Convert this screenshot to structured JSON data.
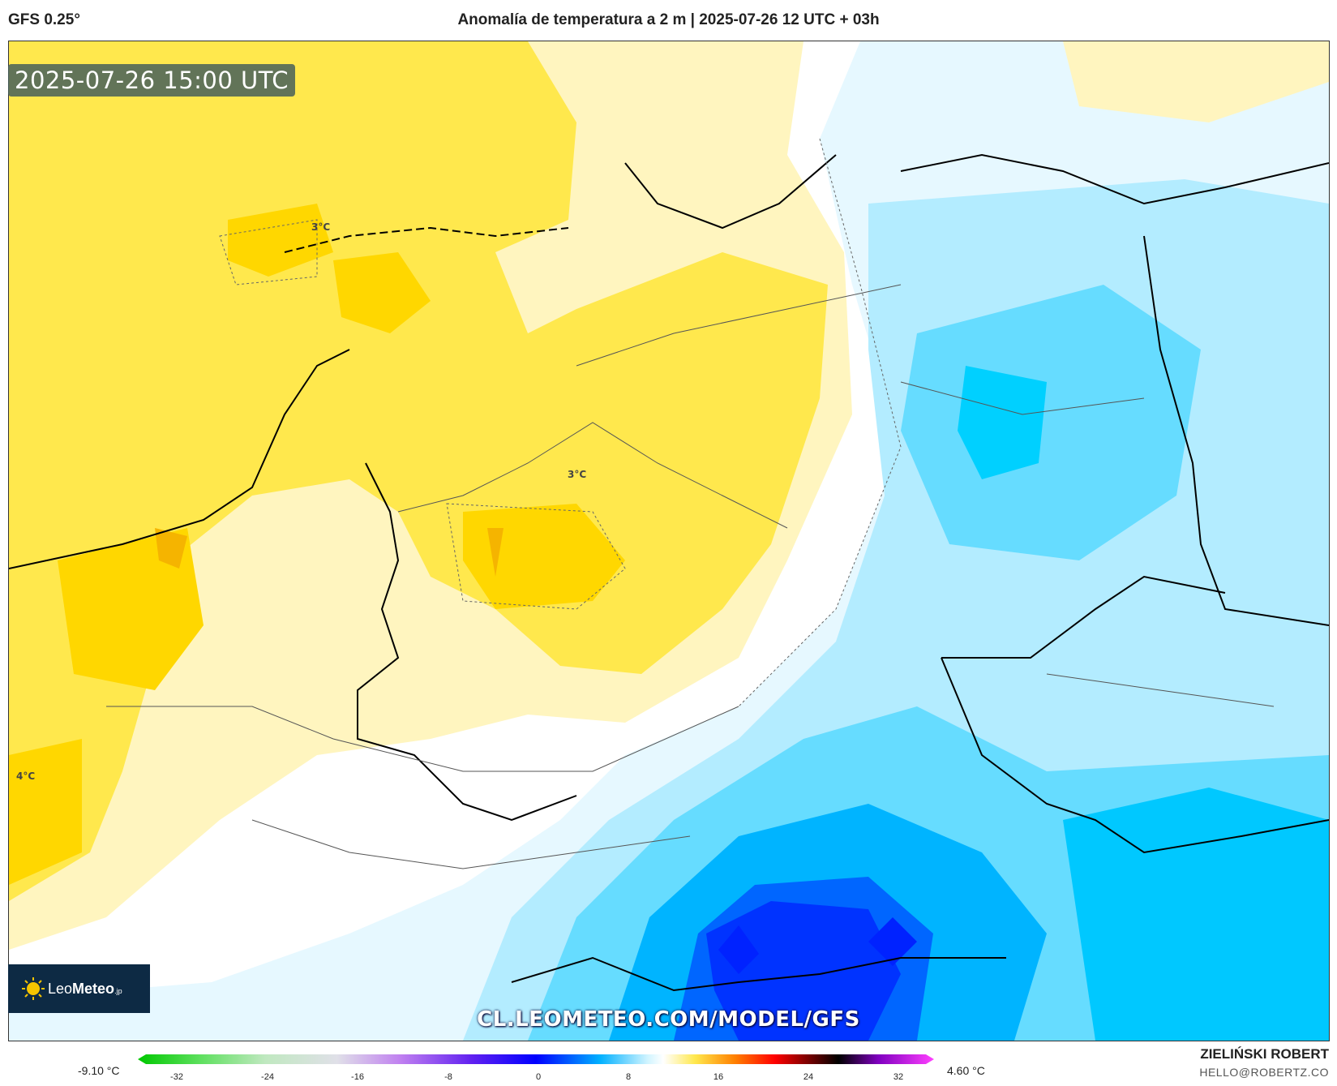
{
  "header": {
    "model": "GFS 0.25°",
    "title": "Anomalía de temperatura a 2 m | 2025-07-26 12 UTC + 03h"
  },
  "map": {
    "valid_time": "2025-07-26 15:00 UTC",
    "contour_labels": [
      "3°C",
      "3°C",
      "4°C"
    ],
    "watermark": "CL.LEOMETEO.COM/MODEL/GFS",
    "logo": {
      "name_light": "Leo",
      "name_bold": "Meteo",
      "suffix": ".jp"
    }
  },
  "legend": {
    "min_value": "-9.10 °C",
    "max_value": "4.60 °C",
    "ticks": [
      "-32",
      "-24",
      "-16",
      "-8",
      "0",
      "8",
      "16",
      "24",
      "32"
    ],
    "colors": {
      "warm_light": "#fff5bf",
      "warm": "#ffe84d",
      "warm_strong": "#ffd700",
      "warm_max": "#f5b400",
      "neutral": "#ffffff",
      "cool_light": "#e6f8ff",
      "cool": "#b3ecff",
      "cool_mid": "#66dcff",
      "cool_strong": "#00b4ff",
      "cold": "#0066ff",
      "cold_max": "#0022ff"
    }
  },
  "credits": {
    "author": "ZIELIŃSKI ROBERT",
    "email": "HELLO@ROBERTZ.CO"
  }
}
